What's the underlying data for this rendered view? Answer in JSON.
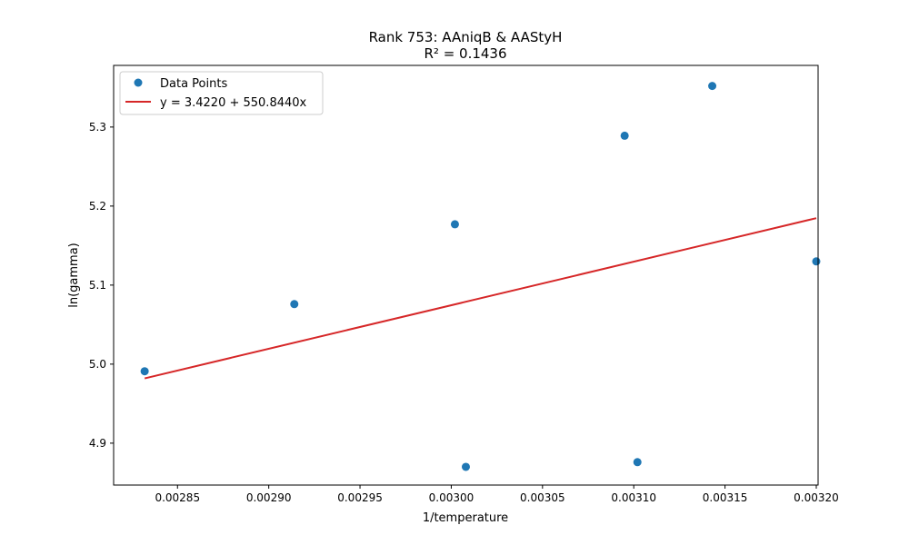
{
  "chart_data": {
    "type": "scatter",
    "title": "Rank 753: AAniqB & AAStyH",
    "subtitle": "R² = 0.1436",
    "xlabel": "1/temperature",
    "ylabel": "ln(gamma)",
    "xlim": [
      0.002815,
      0.003201
    ],
    "ylim": [
      4.847,
      5.378
    ],
    "xticks": [
      0.00285,
      0.0029,
      0.00295,
      0.003,
      0.00305,
      0.0031,
      0.00315,
      0.0032
    ],
    "xtick_labels": [
      "0.00285",
      "0.00290",
      "0.00295",
      "0.00300",
      "0.00305",
      "0.00310",
      "0.00315",
      "0.00320"
    ],
    "yticks": [
      4.9,
      5.0,
      5.1,
      5.2,
      5.3
    ],
    "ytick_labels": [
      "4.9",
      "5.0",
      "5.1",
      "5.2",
      "5.3"
    ],
    "grid": false,
    "legend_position": "top-left",
    "series": [
      {
        "name": "Data Points",
        "kind": "scatter",
        "color": "#1f77b4",
        "points": [
          {
            "x": 0.002832,
            "y": 4.991
          },
          {
            "x": 0.002914,
            "y": 5.076
          },
          {
            "x": 0.003002,
            "y": 5.177
          },
          {
            "x": 0.003008,
            "y": 4.87
          },
          {
            "x": 0.003095,
            "y": 5.289
          },
          {
            "x": 0.003102,
            "y": 4.876
          },
          {
            "x": 0.003143,
            "y": 5.352
          },
          {
            "x": 0.0032,
            "y": 5.13
          }
        ]
      },
      {
        "name": "y = 3.4220 + 550.8440x",
        "kind": "line",
        "color": "#d62728",
        "intercept": 3.422,
        "slope": 550.844,
        "x_range": [
          0.002832,
          0.0032
        ]
      }
    ]
  }
}
